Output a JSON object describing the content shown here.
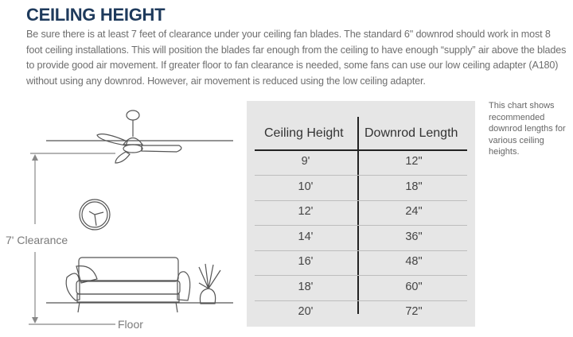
{
  "title": "CEILING HEIGHT",
  "intro": "Be sure there is at least 7 feet of clearance under your ceiling fan blades. The standard 6\" downrod should work in most 8 foot ceiling installations. This will position the blades far enough from the ceiling to have enough “supply” air above the blades to provide good air movement. If greater floor to fan clearance is needed, some fans can use our low ceiling adapter (A180) without using any downrod. However, air movement is reduced using the low ceiling adapter.",
  "diagram": {
    "clearance_label": "7' Clearance",
    "floor_label": "Floor"
  },
  "table": {
    "headers": [
      "Ceiling Height",
      "Downrod Length"
    ],
    "rows": [
      [
        "9'",
        "12\""
      ],
      [
        "10'",
        "18\""
      ],
      [
        "12'",
        "24\""
      ],
      [
        "14'",
        "36\""
      ],
      [
        "16'",
        "48\""
      ],
      [
        "18'",
        "60\""
      ],
      [
        "20'",
        "72\""
      ]
    ]
  },
  "note": "This chart shows recommended downrod lengths for various ceiling heights."
}
